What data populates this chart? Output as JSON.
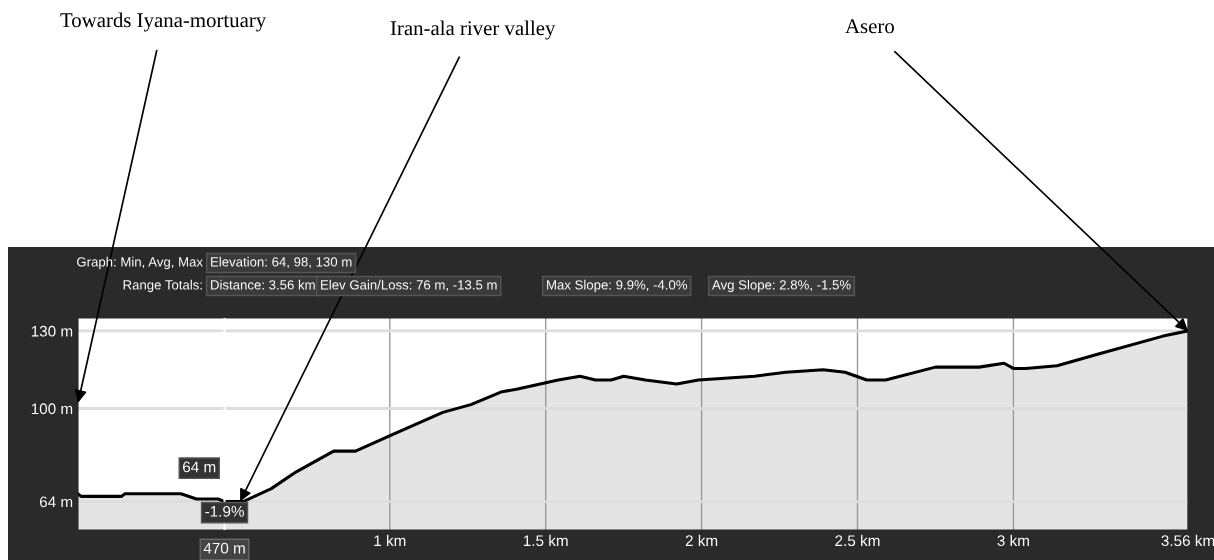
{
  "chart_data": {
    "type": "area",
    "x": [
      0,
      0.01,
      0.14,
      0.15,
      0.33,
      0.38,
      0.45,
      0.47,
      0.53,
      0.62,
      0.7,
      0.82,
      0.89,
      1.01,
      1.17,
      1.26,
      1.36,
      1.41,
      1.54,
      1.61,
      1.66,
      1.71,
      1.75,
      1.82,
      1.92,
      1.99,
      2.17,
      2.27,
      2.39,
      2.46,
      2.53,
      2.59,
      2.75,
      2.89,
      2.97,
      3.0,
      3.04,
      3.14,
      3.27,
      3.48,
      3.56
    ],
    "series": [
      {
        "color": "#000000",
        "values": [
          67,
          66,
          66,
          67,
          67,
          65,
          65,
          64,
          64,
          69,
          75.5,
          83.5,
          83.5,
          90,
          98.5,
          101.5,
          106.5,
          107.5,
          111,
          112.5,
          111,
          111,
          112.5,
          111,
          109.5,
          111,
          112.5,
          114,
          115,
          114,
          111,
          111,
          116,
          116,
          117.5,
          115.5,
          115.5,
          116.5,
          121,
          128,
          130
        ]
      }
    ],
    "xlim": [
      0,
      3.56
    ],
    "xticks": [
      {
        "value": 1,
        "label": "1 km"
      },
      {
        "value": 1.5,
        "label": "1.5 km"
      },
      {
        "value": 2,
        "label": "2 km"
      },
      {
        "value": 2.5,
        "label": "2.5 km"
      },
      {
        "value": 3,
        "label": "3 km"
      },
      {
        "value": 3.56,
        "label": "3.56 km"
      }
    ],
    "ylim": [
      53,
      135
    ],
    "yticks": [
      {
        "value": 64,
        "label": "64 m"
      },
      {
        "value": 100,
        "label": "100 m"
      },
      {
        "value": 130,
        "label": "130 m"
      }
    ],
    "grid": true,
    "ref_lines": [
      {
        "axis": "x",
        "value": 0.47,
        "label": "470 m",
        "color": "#ffffff"
      }
    ],
    "annotations": [
      "Graph: Min, Avg, Max",
      "Elevation: 64, 98, 130 m",
      "Range Totals:",
      "Distance: 3.56 km",
      "Elev Gain/Loss: 76 m, -13.5 m",
      "Max Slope: 9.9%, -4.0%",
      "Avg Slope: 2.8%, -1.5%",
      {
        "text": "64 m",
        "x": 0.47,
        "y": 64
      },
      {
        "text": "-1.9%",
        "x": 0.47,
        "y": 64
      },
      "Towards Iyana-mortuary",
      {
        "text": "Iran-ala river valley",
        "x": 0.52,
        "y": 64
      },
      {
        "text": "Asero",
        "x": 3.56,
        "y": 130
      }
    ]
  }
}
